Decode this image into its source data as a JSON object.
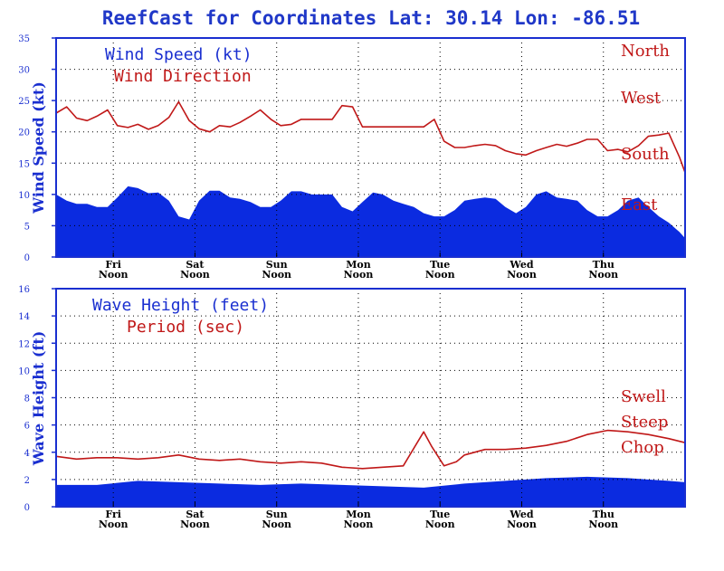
{
  "title": "ReefCast for Coordinates Lat: 30.14 Lon: -86.51",
  "colors": {
    "fill": "#0b2be0",
    "line": "#c01818",
    "axis": "#1a2fd0",
    "text_blue": "#1a2fd0"
  },
  "chart_data": [
    {
      "type": "area",
      "ylabel": "Wind Speed (kt)",
      "ylim": [
        0,
        35
      ],
      "yticks": [
        0,
        5,
        10,
        15,
        20,
        25,
        30,
        35
      ],
      "x_range": [
        0,
        7.7
      ],
      "xticks": [
        {
          "x": 0.7,
          "day": "Fri",
          "time": "Noon"
        },
        {
          "x": 1.7,
          "day": "Sat",
          "time": "Noon"
        },
        {
          "x": 2.7,
          "day": "Sun",
          "time": "Noon"
        },
        {
          "x": 3.7,
          "day": "Mon",
          "time": "Noon"
        },
        {
          "x": 4.7,
          "day": "Tue",
          "time": "Noon"
        },
        {
          "x": 5.7,
          "day": "Wed",
          "time": "Noon"
        },
        {
          "x": 6.7,
          "day": "Thu",
          "time": "Noon"
        }
      ],
      "grid": true,
      "legend": [
        "Wind Speed (kt)",
        "Wind Direction"
      ],
      "right_labels": [
        "North",
        "West",
        "South",
        "East"
      ],
      "series": [
        {
          "name": "Wind Speed (kt)",
          "style": "area",
          "x": [
            0,
            0.13,
            0.25,
            0.38,
            0.5,
            0.63,
            0.75,
            0.88,
            1.0,
            1.13,
            1.25,
            1.38,
            1.5,
            1.63,
            1.75,
            1.88,
            2.0,
            2.13,
            2.25,
            2.38,
            2.5,
            2.63,
            2.75,
            2.88,
            3.0,
            3.13,
            3.25,
            3.38,
            3.5,
            3.63,
            3.75,
            3.88,
            4.0,
            4.13,
            4.25,
            4.38,
            4.5,
            4.63,
            4.75,
            4.88,
            5.0,
            5.13,
            5.25,
            5.38,
            5.5,
            5.63,
            5.75,
            5.88,
            6.0,
            6.13,
            6.25,
            6.38,
            6.5,
            6.63,
            6.75,
            6.88,
            7.0,
            7.13,
            7.25,
            7.38,
            7.5,
            7.63,
            7.7
          ],
          "values": [
            10,
            9,
            8.5,
            8.5,
            8,
            8,
            9.5,
            11.3,
            11,
            10.2,
            10.3,
            9,
            6.5,
            6,
            9,
            10.6,
            10.6,
            9.5,
            9.3,
            8.8,
            8,
            8,
            9,
            10.5,
            10.5,
            10,
            10,
            10,
            8,
            7.3,
            8.8,
            10.3,
            10,
            9,
            8.5,
            8,
            7,
            6.5,
            6.5,
            7.5,
            9,
            9.3,
            9.5,
            9.3,
            8,
            7,
            8,
            10,
            10.5,
            9.5,
            9.3,
            9,
            7.5,
            6.5,
            6.5,
            7.5,
            9,
            9.5,
            8,
            6.5,
            5.5,
            4,
            3
          ]
        },
        {
          "name": "Wind Direction",
          "style": "line",
          "x": [
            0,
            0.13,
            0.25,
            0.38,
            0.5,
            0.63,
            0.75,
            0.88,
            1.0,
            1.13,
            1.25,
            1.38,
            1.5,
            1.63,
            1.75,
            1.88,
            2.0,
            2.13,
            2.25,
            2.38,
            2.5,
            2.63,
            2.75,
            2.88,
            3.0,
            3.13,
            3.25,
            3.38,
            3.5,
            3.63,
            3.75,
            3.88,
            4.0,
            4.13,
            4.25,
            4.38,
            4.5,
            4.63,
            4.75,
            4.88,
            5.0,
            5.13,
            5.25,
            5.38,
            5.5,
            5.63,
            5.75,
            5.88,
            6.0,
            6.13,
            6.25,
            6.38,
            6.5,
            6.63,
            6.75,
            6.88,
            7.0,
            7.13,
            7.25,
            7.38,
            7.5,
            7.63,
            7.7
          ],
          "values": [
            23,
            24,
            22.2,
            21.8,
            22.5,
            23.5,
            21,
            20.7,
            21.2,
            20.4,
            21,
            22.3,
            24.8,
            21.8,
            20.5,
            20,
            21,
            20.8,
            21.5,
            22.5,
            23.5,
            22,
            21,
            21.2,
            22,
            22,
            22,
            22,
            24.2,
            24,
            20.8,
            20.8,
            20.8,
            20.8,
            20.8,
            20.8,
            20.8,
            22,
            18.5,
            17.5,
            17.5,
            17.8,
            18,
            17.8,
            17,
            16.5,
            16.3,
            17,
            17.5,
            18,
            17.7,
            18.2,
            18.8,
            18.8,
            17,
            17.2,
            16.8,
            17.8,
            19.3,
            19.5,
            19.8,
            16,
            13.5
          ]
        }
      ]
    },
    {
      "type": "area",
      "ylabel": "Wave Height (ft)",
      "ylim": [
        0,
        16
      ],
      "yticks": [
        0,
        2,
        4,
        6,
        8,
        10,
        12,
        14,
        16
      ],
      "x_range": [
        0,
        7.7
      ],
      "xticks": [
        {
          "x": 0.7,
          "day": "Fri",
          "time": "Noon"
        },
        {
          "x": 1.7,
          "day": "Sat",
          "time": "Noon"
        },
        {
          "x": 2.7,
          "day": "Sun",
          "time": "Noon"
        },
        {
          "x": 3.7,
          "day": "Mon",
          "time": "Noon"
        },
        {
          "x": 4.7,
          "day": "Tue",
          "time": "Noon"
        },
        {
          "x": 5.7,
          "day": "Wed",
          "time": "Noon"
        },
        {
          "x": 6.7,
          "day": "Thu",
          "time": "Noon"
        }
      ],
      "grid": true,
      "legend": [
        "Wave Height (feet)",
        "Period (sec)"
      ],
      "right_labels": [
        "Swell",
        "Steep",
        "Chop"
      ],
      "series": [
        {
          "name": "Wave Height (feet)",
          "style": "area",
          "x": [
            0,
            0.5,
            1.0,
            1.5,
            2.0,
            2.5,
            3.0,
            3.5,
            4.0,
            4.5,
            5.0,
            5.5,
            6.0,
            6.5,
            7.0,
            7.5,
            7.7
          ],
          "values": [
            1.6,
            1.6,
            1.9,
            1.8,
            1.7,
            1.6,
            1.7,
            1.6,
            1.5,
            1.4,
            1.7,
            1.9,
            2.1,
            2.2,
            2.1,
            1.9,
            1.8
          ]
        },
        {
          "name": "Period (sec)",
          "style": "line",
          "x": [
            0,
            0.25,
            0.5,
            0.75,
            1.0,
            1.25,
            1.5,
            1.75,
            2.0,
            2.25,
            2.5,
            2.75,
            3.0,
            3.25,
            3.5,
            3.75,
            4.0,
            4.25,
            4.5,
            4.6,
            4.75,
            4.9,
            5.0,
            5.25,
            5.5,
            5.75,
            6.0,
            6.25,
            6.5,
            6.75,
            7.0,
            7.25,
            7.5,
            7.7
          ],
          "values": [
            3.7,
            3.5,
            3.6,
            3.6,
            3.5,
            3.6,
            3.8,
            3.5,
            3.4,
            3.5,
            3.3,
            3.2,
            3.3,
            3.2,
            2.9,
            2.8,
            2.9,
            3.0,
            5.5,
            4.4,
            3.0,
            3.3,
            3.8,
            4.2,
            4.2,
            4.3,
            4.5,
            4.8,
            5.3,
            5.6,
            5.5,
            5.3,
            5.0,
            4.7
          ]
        }
      ]
    }
  ]
}
